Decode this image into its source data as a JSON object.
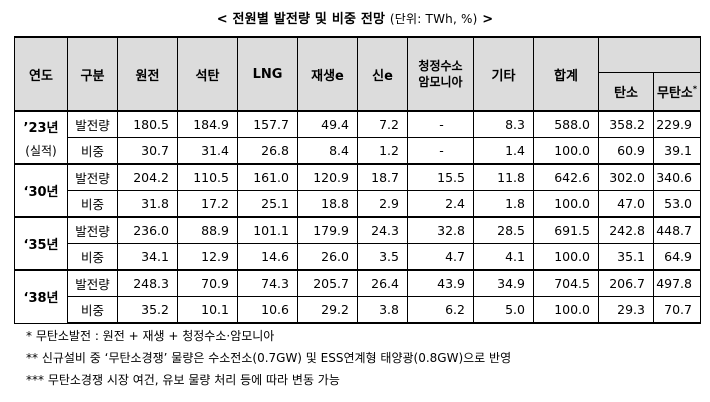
{
  "title": "< 전원별 발전량 및 비중 전망",
  "unit": "(단위: TWh, %)",
  "title_end": ">",
  "headers": {
    "year": "연도",
    "type": "구분",
    "nuclear": "원전",
    "coal": "석탄",
    "lng": "LNG",
    "renewable": "재생e",
    "new_energy": "신e",
    "clean_h2_line1": "청정수소",
    "clean_h2_line2": "암모니아",
    "other": "기타",
    "total": "합계",
    "carbon": "탄소",
    "carbon_free": "무탄소",
    "carbon_free_mark": "*"
  },
  "rows": [
    {
      "year": "’23년",
      "year_note": "(실적)",
      "type_gen": "발전량",
      "gen": [
        "180.5",
        "184.9",
        "157.7",
        "49.4",
        "7.2",
        "-",
        "8.3",
        "588.0",
        "358.2",
        "229.9"
      ],
      "type_share": "비중",
      "share": [
        "30.7",
        "31.4",
        "26.8",
        "8.4",
        "1.2",
        "-",
        "1.4",
        "100.0",
        "60.9",
        "39.1"
      ]
    },
    {
      "year": "‘30년",
      "year_note": "",
      "type_gen": "발전량",
      "gen": [
        "204.2",
        "110.5",
        "161.0",
        "120.9",
        "18.7",
        "15.5",
        "11.8",
        "642.6",
        "302.0",
        "340.6"
      ],
      "type_share": "비중",
      "share": [
        "31.8",
        "17.2",
        "25.1",
        "18.8",
        "2.9",
        "2.4",
        "1.8",
        "100.0",
        "47.0",
        "53.0"
      ]
    },
    {
      "year": "‘35년",
      "year_note": "",
      "type_gen": "발전량",
      "gen": [
        "236.0",
        "88.9",
        "101.1",
        "179.9",
        "24.3",
        "32.8",
        "28.5",
        "691.5",
        "242.8",
        "448.7"
      ],
      "type_share": "비중",
      "share": [
        "34.1",
        "12.9",
        "14.6",
        "26.0",
        "3.5",
        "4.7",
        "4.1",
        "100.0",
        "35.1",
        "64.9"
      ]
    },
    {
      "year": "‘38년",
      "year_note": "",
      "type_gen": "발전량",
      "gen": [
        "248.3",
        "70.9",
        "74.3",
        "205.7",
        "26.4",
        "43.9",
        "34.9",
        "704.5",
        "206.7",
        "497.8"
      ],
      "type_share": "비중",
      "share": [
        "35.2",
        "10.1",
        "10.6",
        "29.2",
        "3.8",
        "6.2",
        "5.0",
        "100.0",
        "29.3",
        "70.7"
      ]
    }
  ],
  "notes": [
    "*  무탄소발전 : 원전 + 재생 + 청정수소·암모니아",
    "** 신규설비 중 ‘무탄소경쟁’ 물량은 수소전소(0.7GW) 및 ESS연계형 태양광(0.8GW)으로 반영",
    "*** 무탄소경쟁 시장 여건, 유보 물량 처리 등에 따라 변동 가능"
  ]
}
